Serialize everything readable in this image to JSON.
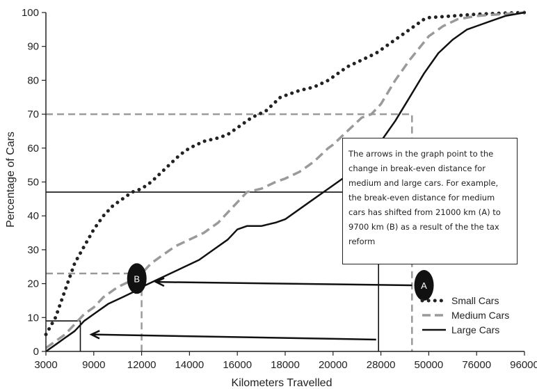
{
  "chart_data": {
    "type": "line",
    "xlabel": "Kilometers Travelled",
    "ylabel": "Percentage of Cars",
    "x_ticks": [
      "3000",
      "9000",
      "12000",
      "14000",
      "16000",
      "18000",
      "20000",
      "28000",
      "50000",
      "76000",
      "96000"
    ],
    "ylim": [
      0,
      100
    ],
    "y_ticks": [
      0,
      10,
      20,
      30,
      40,
      50,
      60,
      70,
      80,
      90,
      100
    ],
    "x_scale": "categorical-ticks",
    "legend_position": "bottom-right",
    "series": [
      {
        "name": "Small Cars",
        "style": "dotted",
        "color": "#222222",
        "points": [
          [
            0.0,
            5
          ],
          [
            0.2,
            10
          ],
          [
            0.4,
            18
          ],
          [
            0.6,
            26
          ],
          [
            0.8,
            31
          ],
          [
            1.0,
            36
          ],
          [
            1.2,
            40
          ],
          [
            1.4,
            43
          ],
          [
            1.6,
            45
          ],
          [
            1.8,
            47
          ],
          [
            2.0,
            48
          ],
          [
            2.2,
            50
          ],
          [
            2.5,
            54
          ],
          [
            2.8,
            58
          ],
          [
            3.0,
            60
          ],
          [
            3.3,
            62
          ],
          [
            3.6,
            63
          ],
          [
            3.8,
            64
          ],
          [
            4.0,
            66
          ],
          [
            4.3,
            69
          ],
          [
            4.6,
            71
          ],
          [
            4.9,
            75
          ],
          [
            5.0,
            75.5
          ],
          [
            5.3,
            77
          ],
          [
            5.6,
            78
          ],
          [
            5.9,
            80
          ],
          [
            6.0,
            81
          ],
          [
            6.3,
            84
          ],
          [
            6.6,
            86
          ],
          [
            6.9,
            88
          ],
          [
            7.0,
            89
          ],
          [
            7.3,
            92
          ],
          [
            7.6,
            95
          ],
          [
            7.9,
            98
          ],
          [
            8.0,
            98.5
          ],
          [
            8.5,
            99
          ],
          [
            9.0,
            99.5
          ],
          [
            9.5,
            99.8
          ],
          [
            10.0,
            100
          ]
        ]
      },
      {
        "name": "Medium Cars",
        "style": "dashed",
        "color": "#9a9a9a",
        "points": [
          [
            0.0,
            1
          ],
          [
            0.2,
            3
          ],
          [
            0.4,
            5
          ],
          [
            0.6,
            8
          ],
          [
            0.8,
            11
          ],
          [
            1.0,
            13
          ],
          [
            1.2,
            16
          ],
          [
            1.5,
            19
          ],
          [
            1.8,
            21
          ],
          [
            2.0,
            23
          ],
          [
            2.2,
            26
          ],
          [
            2.4,
            28
          ],
          [
            2.7,
            31
          ],
          [
            3.0,
            33
          ],
          [
            3.3,
            35
          ],
          [
            3.6,
            38
          ],
          [
            3.8,
            41
          ],
          [
            4.0,
            44
          ],
          [
            4.2,
            47
          ],
          [
            4.5,
            48
          ],
          [
            4.8,
            50
          ],
          [
            5.0,
            51
          ],
          [
            5.3,
            53
          ],
          [
            5.6,
            56
          ],
          [
            5.9,
            60
          ],
          [
            6.0,
            61
          ],
          [
            6.3,
            65
          ],
          [
            6.6,
            69
          ],
          [
            6.8,
            70
          ],
          [
            7.0,
            73
          ],
          [
            7.3,
            80
          ],
          [
            7.6,
            86
          ],
          [
            8.0,
            93
          ],
          [
            8.3,
            96
          ],
          [
            8.6,
            98
          ],
          [
            9.0,
            99
          ],
          [
            9.5,
            99.5
          ],
          [
            10.0,
            100
          ]
        ]
      },
      {
        "name": "Large Cars",
        "style": "solid",
        "color": "#111111",
        "points": [
          [
            0.0,
            0
          ],
          [
            0.2,
            2
          ],
          [
            0.4,
            4
          ],
          [
            0.6,
            6
          ],
          [
            0.8,
            9
          ],
          [
            1.0,
            11
          ],
          [
            1.3,
            14
          ],
          [
            1.6,
            16
          ],
          [
            1.9,
            18
          ],
          [
            2.0,
            19
          ],
          [
            2.3,
            21
          ],
          [
            2.6,
            23
          ],
          [
            2.9,
            25
          ],
          [
            3.2,
            27
          ],
          [
            3.5,
            30
          ],
          [
            3.8,
            33
          ],
          [
            4.0,
            36
          ],
          [
            4.2,
            37
          ],
          [
            4.5,
            37
          ],
          [
            4.8,
            38
          ],
          [
            5.0,
            39
          ],
          [
            5.2,
            41
          ],
          [
            5.5,
            44
          ],
          [
            5.8,
            47
          ],
          [
            6.0,
            49
          ],
          [
            6.3,
            52
          ],
          [
            6.6,
            55
          ],
          [
            6.9,
            60
          ],
          [
            7.0,
            62
          ],
          [
            7.3,
            68
          ],
          [
            7.6,
            75
          ],
          [
            7.9,
            82
          ],
          [
            8.0,
            84
          ],
          [
            8.2,
            88
          ],
          [
            8.5,
            92
          ],
          [
            8.8,
            95
          ],
          [
            9.0,
            96
          ],
          [
            9.3,
            97.5
          ],
          [
            9.6,
            99
          ],
          [
            10.0,
            100
          ]
        ]
      }
    ],
    "reference_lines": [
      {
        "style": "dashed",
        "color": "#9a9a9a",
        "path": [
          [
            0.0,
            70
          ],
          [
            7.65,
            70
          ],
          [
            7.65,
            0
          ]
        ]
      },
      {
        "style": "dashed",
        "color": "#9a9a9a",
        "path": [
          [
            0.0,
            23
          ],
          [
            2.0,
            23
          ],
          [
            2.0,
            0
          ]
        ]
      },
      {
        "style": "solid",
        "color": "#111111",
        "path": [
          [
            0.0,
            47
          ],
          [
            6.95,
            47
          ],
          [
            6.95,
            0
          ]
        ]
      },
      {
        "style": "solid",
        "color": "#111111",
        "path": [
          [
            0.0,
            9
          ],
          [
            0.72,
            9
          ],
          [
            0.72,
            0
          ]
        ]
      }
    ],
    "arrows": [
      {
        "from": [
          7.65,
          19.5
        ],
        "to": [
          2.3,
          20.5
        ]
      },
      {
        "from": [
          6.9,
          3.5
        ],
        "to": [
          0.95,
          5.0
        ]
      }
    ],
    "markers": [
      {
        "label": "A",
        "x": 7.9,
        "y": 19.5
      },
      {
        "label": "B",
        "x": 1.9,
        "y": 21.5
      }
    ],
    "annotation": "The arrows in the graph point to the change in break-even distance for medium and large cars. For example, the break-even distance for medium cars has shifted from 21000 km (A) to 9700 km (B) as a result of the the tax reform"
  }
}
